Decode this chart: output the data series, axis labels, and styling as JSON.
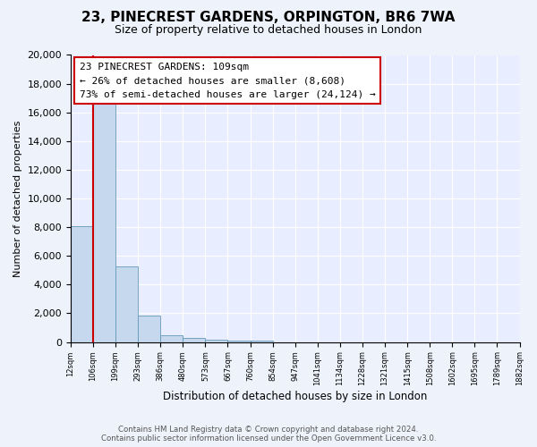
{
  "title": "23, PINECREST GARDENS, ORPINGTON, BR6 7WA",
  "subtitle": "Size of property relative to detached houses in London",
  "xlabel": "Distribution of detached houses by size in London",
  "ylabel": "Number of detached properties",
  "bar_values": [
    8100,
    16600,
    5300,
    1850,
    500,
    280,
    150,
    100,
    70,
    0,
    0,
    0,
    0,
    0,
    0,
    0,
    0,
    0,
    0,
    0
  ],
  "bar_labels": [
    "12sqm",
    "106sqm",
    "199sqm",
    "293sqm",
    "386sqm",
    "480sqm",
    "573sqm",
    "667sqm",
    "760sqm",
    "854sqm",
    "947sqm",
    "1041sqm",
    "1134sqm",
    "1228sqm",
    "1321sqm",
    "1415sqm",
    "1508sqm",
    "1602sqm",
    "1695sqm",
    "1789sqm",
    "1882sqm"
  ],
  "bar_color": "#c5d8ee",
  "bar_edge_color": "#6699bb",
  "vline_x": 1,
  "vline_color": "#cc0000",
  "ylim": [
    0,
    20000
  ],
  "yticks": [
    0,
    2000,
    4000,
    6000,
    8000,
    10000,
    12000,
    14000,
    16000,
    18000,
    20000
  ],
  "annotation_title": "23 PINECREST GARDENS: 109sqm",
  "annotation_line1": "← 26% of detached houses are smaller (8,608)",
  "annotation_line2": "73% of semi-detached houses are larger (24,124) →",
  "annotation_box_color": "#ffffff",
  "annotation_box_edge": "#cc0000",
  "footer_line1": "Contains HM Land Registry data © Crown copyright and database right 2024.",
  "footer_line2": "Contains public sector information licensed under the Open Government Licence v3.0.",
  "background_color": "#eef2fb",
  "plot_bg_color": "#e8eeff"
}
